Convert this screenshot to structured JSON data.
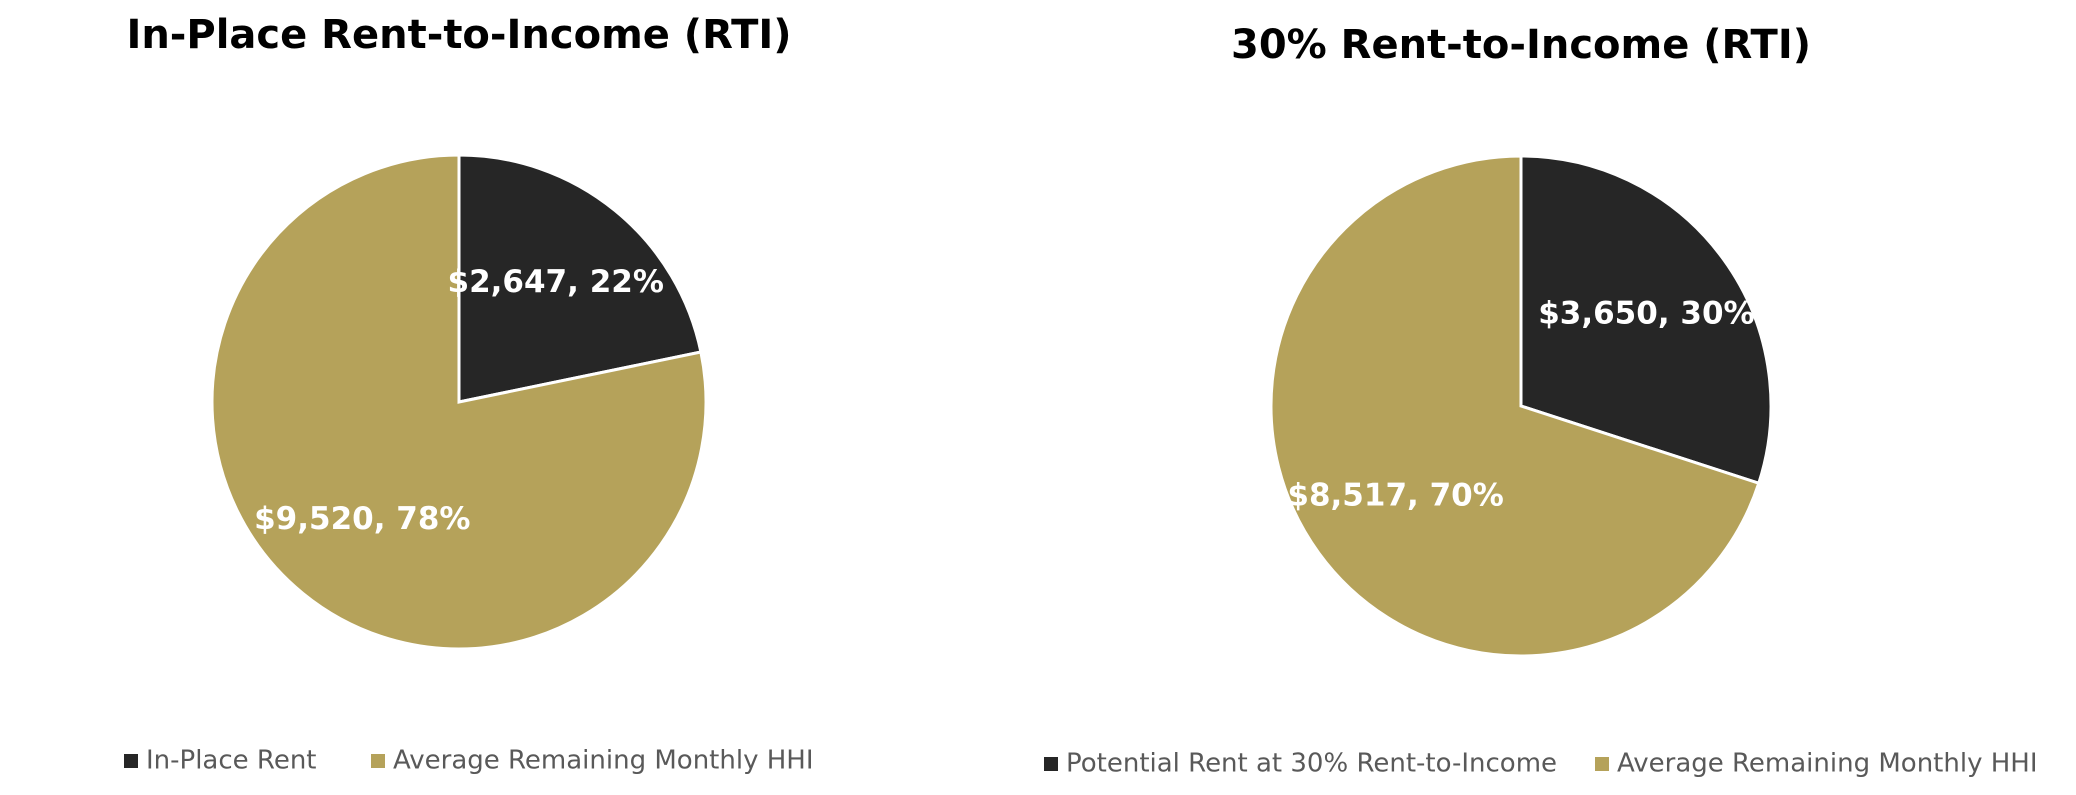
{
  "chart_data": [
    {
      "type": "pie",
      "title": "In-Place Rent-to-Income (RTI)",
      "categories": [
        "In-Place Rent",
        "Average Remaining Monthly HHI"
      ],
      "values": [
        2647,
        9520
      ],
      "value_labels": [
        "$2,647, 22%",
        "$9,520, 78%"
      ],
      "colors": [
        "#262626",
        "#b5a25a"
      ],
      "legend": "bottom"
    },
    {
      "type": "pie",
      "title": "30% Rent-to-Income (RTI)",
      "categories": [
        "Potential Rent at 30% Rent-to-Income",
        "Average Remaining Monthly HHI"
      ],
      "values": [
        3650,
        8517
      ],
      "value_labels": [
        "$3,650, 30%",
        "$8,517, 70%"
      ],
      "colors": [
        "#262626",
        "#b5a25a"
      ],
      "legend": "bottom"
    }
  ]
}
